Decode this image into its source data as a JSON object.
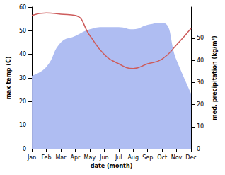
{
  "chart_data": {
    "type": "line",
    "categories": [
      "Jan",
      "Feb",
      "Mar",
      "Apr",
      "May",
      "Jun",
      "Jul",
      "Aug",
      "Sep",
      "Oct",
      "Nov",
      "Dec"
    ],
    "xlabel": "date (month)",
    "ylabel": "max temp (C)",
    "y2label": "med. precipitation (kg/m²)",
    "ylim": [
      0,
      60
    ],
    "yticks": [
      0,
      10,
      20,
      30,
      40,
      50,
      60
    ],
    "y2lim": [
      0,
      64
    ],
    "y2ticks": [
      0,
      10,
      20,
      30,
      40,
      50
    ],
    "grid": false,
    "series": [
      {
        "name": "med. precipitation",
        "type": "area",
        "axis": "y2",
        "color": "#afbdf2",
        "values": [
          33,
          37,
          48,
          51,
          54,
          55,
          55,
          54,
          56,
          57,
          40,
          25
        ]
      },
      {
        "name": "max temp",
        "type": "line",
        "axis": "y",
        "color": "#cd5c5c",
        "values": [
          56.5,
          57.5,
          57,
          56.5,
          48,
          40,
          36,
          34,
          36,
          38,
          44,
          51
        ]
      }
    ]
  }
}
